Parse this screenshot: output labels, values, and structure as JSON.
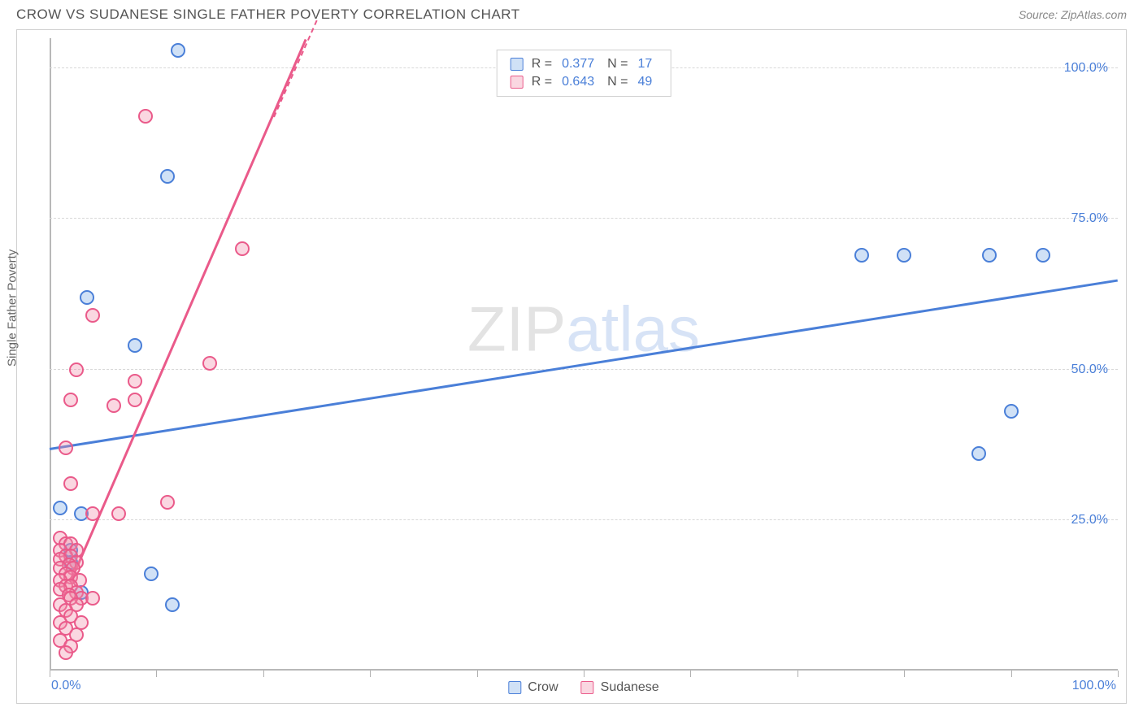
{
  "header": {
    "title": "CROW VS SUDANESE SINGLE FATHER POVERTY CORRELATION CHART",
    "source_prefix": "Source: ",
    "source_name": "ZipAtlas.com"
  },
  "chart": {
    "type": "scatter",
    "ylabel": "Single Father Poverty",
    "xlim": [
      0,
      100
    ],
    "ylim": [
      0,
      105
    ],
    "xtick_labels": {
      "left": "0.0%",
      "right": "100.0%"
    },
    "ytick_positions": [
      25,
      50,
      75,
      100
    ],
    "ytick_labels": [
      "25.0%",
      "50.0%",
      "75.0%",
      "100.0%"
    ],
    "xtick_positions": [
      0,
      10,
      20,
      30,
      40,
      50,
      60,
      70,
      80,
      90,
      100
    ],
    "grid_y": [
      25,
      50,
      75,
      100
    ],
    "background_color": "#ffffff",
    "grid_color": "#d8d8d8",
    "axis_color": "#b8b8b8",
    "marker_radius": 9,
    "marker_stroke_width": 2,
    "watermark": {
      "zip": "ZIP",
      "atlas": "atlas"
    },
    "series": [
      {
        "name": "Crow",
        "stroke": "#4a7fd8",
        "fill": "rgba(120,170,230,0.35)",
        "R": "0.377",
        "N": "17",
        "trend": {
          "x1": 0,
          "y1": 37,
          "x2": 100,
          "y2": 65,
          "width": 3
        },
        "points": [
          {
            "x": 12,
            "y": 103
          },
          {
            "x": 11,
            "y": 82
          },
          {
            "x": 3.5,
            "y": 62
          },
          {
            "x": 8,
            "y": 54
          },
          {
            "x": 1,
            "y": 27
          },
          {
            "x": 3,
            "y": 26
          },
          {
            "x": 2,
            "y": 20
          },
          {
            "x": 9.5,
            "y": 16
          },
          {
            "x": 11.5,
            "y": 11
          },
          {
            "x": 3,
            "y": 13
          },
          {
            "x": 2,
            "y": 18
          },
          {
            "x": 76,
            "y": 69
          },
          {
            "x": 80,
            "y": 69
          },
          {
            "x": 88,
            "y": 69
          },
          {
            "x": 93,
            "y": 69
          },
          {
            "x": 90,
            "y": 43
          },
          {
            "x": 87,
            "y": 36
          }
        ]
      },
      {
        "name": "Sudanese",
        "stroke": "#ea5a8a",
        "fill": "rgba(240,140,170,0.35)",
        "R": "0.643",
        "N": "49",
        "trend": {
          "x1": 2,
          "y1": 15,
          "x2": 24,
          "y2": 105,
          "width": 3,
          "dashed_tail": true,
          "tail_x1": 21,
          "tail_y1": 92,
          "tail_x2": 25,
          "tail_y2": 108
        },
        "points": [
          {
            "x": 9,
            "y": 92
          },
          {
            "x": 18,
            "y": 70
          },
          {
            "x": 4,
            "y": 59
          },
          {
            "x": 2.5,
            "y": 50
          },
          {
            "x": 8,
            "y": 48
          },
          {
            "x": 15,
            "y": 51
          },
          {
            "x": 2,
            "y": 45
          },
          {
            "x": 8,
            "y": 45
          },
          {
            "x": 6,
            "y": 44
          },
          {
            "x": 1.5,
            "y": 37
          },
          {
            "x": 2,
            "y": 31
          },
          {
            "x": 11,
            "y": 28
          },
          {
            "x": 6.5,
            "y": 26
          },
          {
            "x": 4,
            "y": 26
          },
          {
            "x": 1,
            "y": 22
          },
          {
            "x": 1.5,
            "y": 21
          },
          {
            "x": 2,
            "y": 21
          },
          {
            "x": 1,
            "y": 20
          },
          {
            "x": 2.5,
            "y": 20
          },
          {
            "x": 1.5,
            "y": 19
          },
          {
            "x": 2,
            "y": 19
          },
          {
            "x": 1,
            "y": 18.5
          },
          {
            "x": 2.5,
            "y": 18
          },
          {
            "x": 1.8,
            "y": 17.5
          },
          {
            "x": 1,
            "y": 17
          },
          {
            "x": 2.2,
            "y": 17
          },
          {
            "x": 1.5,
            "y": 16
          },
          {
            "x": 2,
            "y": 15.5
          },
          {
            "x": 1,
            "y": 15
          },
          {
            "x": 2.8,
            "y": 15
          },
          {
            "x": 1.5,
            "y": 14
          },
          {
            "x": 2,
            "y": 14
          },
          {
            "x": 1,
            "y": 13.5
          },
          {
            "x": 2.5,
            "y": 13
          },
          {
            "x": 1.8,
            "y": 12.5
          },
          {
            "x": 3,
            "y": 12
          },
          {
            "x": 2,
            "y": 12
          },
          {
            "x": 1,
            "y": 11
          },
          {
            "x": 2.5,
            "y": 11
          },
          {
            "x": 4,
            "y": 12
          },
          {
            "x": 1.5,
            "y": 10
          },
          {
            "x": 2,
            "y": 9
          },
          {
            "x": 1,
            "y": 8
          },
          {
            "x": 3,
            "y": 8
          },
          {
            "x": 1.5,
            "y": 7
          },
          {
            "x": 2.5,
            "y": 6
          },
          {
            "x": 1,
            "y": 5
          },
          {
            "x": 2,
            "y": 4
          },
          {
            "x": 1.5,
            "y": 3
          }
        ]
      }
    ],
    "legend_top": {
      "r_label": "R =",
      "n_label": "N ="
    },
    "legend_bottom": {
      "items": [
        "Crow",
        "Sudanese"
      ]
    }
  }
}
